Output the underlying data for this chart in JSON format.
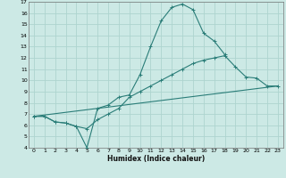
{
  "xlabel": "Humidex (Indice chaleur)",
  "xlim": [
    -0.5,
    23.5
  ],
  "ylim": [
    4,
    17
  ],
  "xticks": [
    0,
    1,
    2,
    3,
    4,
    5,
    6,
    7,
    8,
    9,
    10,
    11,
    12,
    13,
    14,
    15,
    16,
    17,
    18,
    19,
    20,
    21,
    22,
    23
  ],
  "yticks": [
    4,
    5,
    6,
    7,
    8,
    9,
    10,
    11,
    12,
    13,
    14,
    15,
    16,
    17
  ],
  "background_color": "#cce9e5",
  "grid_color": "#aed4cf",
  "line_color": "#2a7d78",
  "line1_x": [
    0,
    1,
    2,
    3,
    4,
    5,
    6,
    7,
    8,
    9,
    10,
    11,
    12,
    13,
    14,
    15,
    16,
    17,
    18,
    19,
    20,
    21,
    22,
    23
  ],
  "line1_y": [
    6.8,
    6.8,
    6.3,
    6.2,
    5.9,
    4.0,
    7.5,
    7.8,
    8.5,
    8.7,
    10.5,
    13.0,
    15.3,
    16.5,
    16.8,
    16.3,
    14.2,
    13.5,
    12.3,
    null,
    null,
    null,
    null,
    null
  ],
  "line2_x": [
    0,
    1,
    2,
    3,
    4,
    5,
    6,
    7,
    8,
    9,
    10,
    11,
    12,
    13,
    14,
    15,
    16,
    17,
    18,
    19,
    20,
    21,
    22,
    23
  ],
  "line2_y": [
    6.8,
    6.8,
    6.3,
    6.2,
    5.9,
    5.7,
    6.5,
    7.0,
    7.5,
    8.5,
    9.0,
    9.5,
    10.0,
    10.5,
    11.0,
    11.5,
    11.8,
    12.0,
    12.2,
    11.2,
    10.3,
    10.2,
    9.5,
    9.5
  ],
  "line3_x": [
    0,
    23
  ],
  "line3_y": [
    6.8,
    9.5
  ],
  "marker_line1_x": [
    0,
    1,
    2,
    3,
    4,
    5,
    6,
    7,
    8,
    9,
    10,
    11,
    12,
    13,
    14,
    15,
    16,
    17,
    18
  ],
  "marker_line1_y": [
    6.8,
    6.8,
    6.3,
    6.2,
    5.9,
    4.0,
    7.5,
    7.8,
    8.5,
    8.7,
    10.5,
    13.0,
    15.3,
    16.5,
    16.8,
    16.3,
    14.2,
    13.5,
    12.3
  ],
  "marker_line2_x": [
    0,
    1,
    2,
    3,
    4,
    5,
    6,
    7,
    8,
    9,
    10,
    11,
    12,
    13,
    14,
    15,
    16,
    17,
    18,
    19,
    20,
    21,
    22,
    23
  ],
  "marker_line2_y": [
    6.8,
    6.8,
    6.3,
    6.2,
    5.9,
    5.7,
    6.5,
    7.0,
    7.5,
    8.5,
    9.0,
    9.5,
    10.0,
    10.5,
    11.0,
    11.5,
    11.8,
    12.0,
    12.2,
    11.2,
    10.3,
    10.2,
    9.5,
    9.5
  ]
}
